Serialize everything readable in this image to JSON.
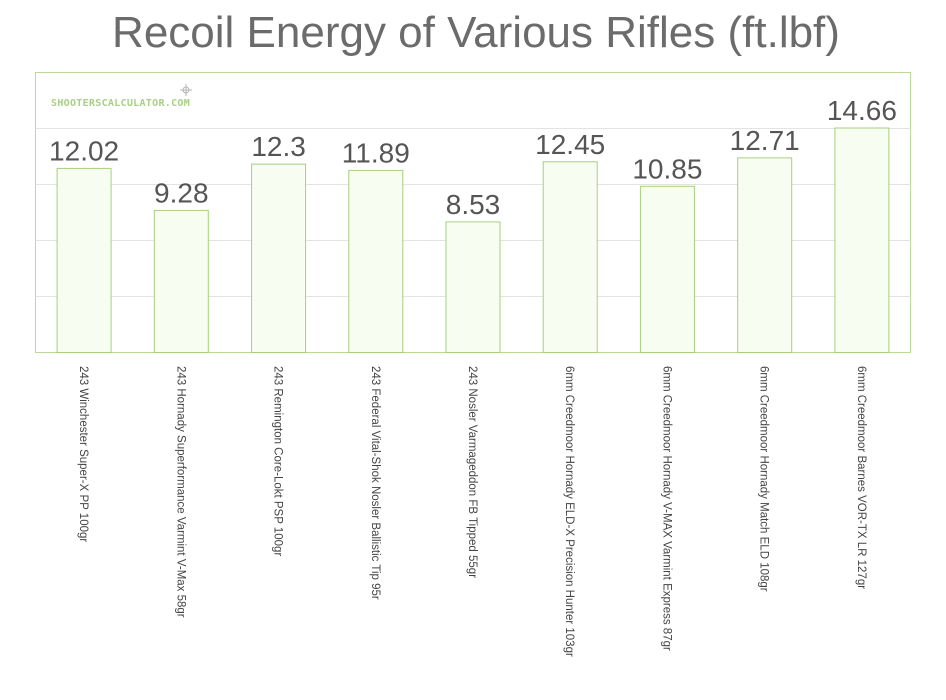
{
  "title": "Recoil Energy of Various Rifles (ft.lbf)",
  "watermark": "SHOOTERSCALCULATOR.COM",
  "colors": {
    "bar_fill": "#f8fdf2",
    "bar_stroke": "#a6d07e",
    "frame": "#bcd99c",
    "grid": "#e3e3e3",
    "title": "#6b6b6b",
    "watermark": "#a9cf86"
  },
  "chart_data": {
    "type": "bar",
    "title": "Recoil Energy of Various Rifles (ft.lbf)",
    "categories": [
      "243 Winchester Super-X PP 100gr",
      "243 Hornady Superformance Varmint V-Max 58gr",
      "243 Remington Core-Lokt PSP 100gr",
      "243 Federal Vital-Shok Nosler Ballistic Tip 95r",
      "243 Nosler Varmageddon FB Tipped 55gr",
      "6mm Creedmoor Hornady ELD-X Precision Hunter 103gr",
      "6mm Creedmoor Hornady V-MAX Varmint Express 87gr",
      "6mm Creedmoor Hornady Match ELD 108gr",
      "6mm Creedmoor Barnes VOR-TX LR 127gr"
    ],
    "values": [
      12.02,
      9.28,
      12.3,
      11.89,
      8.53,
      12.45,
      10.85,
      12.71,
      14.66
    ],
    "value_labels": [
      "12.02",
      "9.28",
      "12.3",
      "11.89",
      "8.53",
      "12.45",
      "10.85",
      "12.71",
      "14.66"
    ],
    "xlabel": "",
    "ylabel": "",
    "ylim": [
      0,
      14.66
    ],
    "grid": true,
    "legend": "none"
  }
}
